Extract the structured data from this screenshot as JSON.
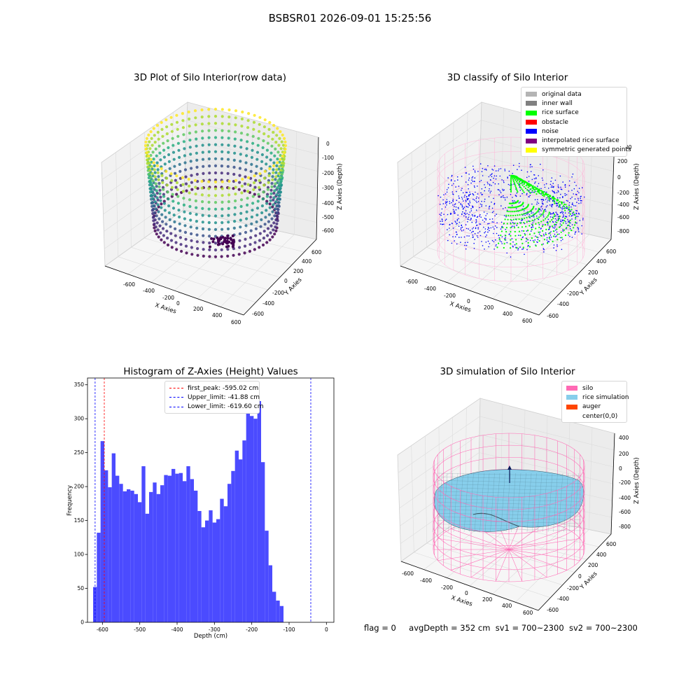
{
  "suptitle": "BSBSR01 2026-09-01 15:25:56",
  "panels": {
    "raw": {
      "title": "3D Plot of Silo Interior(row data)",
      "xlabel": "X Axies",
      "ylabel": "Y Axies",
      "zlabel": "Z Axies (Depth)",
      "xticks": [
        "-600",
        "-400",
        "-200",
        "0",
        "200",
        "400",
        "600"
      ],
      "yticks": [
        "-600",
        "-400",
        "-200",
        "0",
        "200",
        "400",
        "600"
      ],
      "zticks": [
        "0",
        "-100",
        "-200",
        "-300",
        "-400",
        "-500",
        "-600"
      ]
    },
    "classify": {
      "title": "3D classify of Silo Interior",
      "xlabel": "X Axies",
      "ylabel": "Y Axies",
      "zlabel": "Z Axies (Depth)",
      "xticks": [
        "-600",
        "-400",
        "-200",
        "0",
        "200",
        "400",
        "600"
      ],
      "yticks": [
        "-600",
        "-400",
        "-200",
        "0",
        "200",
        "400",
        "600"
      ],
      "zticks": [
        "200",
        "0",
        "-200",
        "-400",
        "-600",
        "-800"
      ],
      "ztop": "00",
      "legend": [
        {
          "label": "original data",
          "color": "#b4b4b4"
        },
        {
          "label": "inner wall",
          "color": "#808080"
        },
        {
          "label": "rice surface",
          "color": "#00ff00"
        },
        {
          "label": "obstacle",
          "color": "#ff0000"
        },
        {
          "label": "noise",
          "color": "#0000ff"
        },
        {
          "label": "interpolated rice surface",
          "color": "#800080"
        },
        {
          "label": "symmetric generated points",
          "color": "#ffff00"
        }
      ]
    },
    "histogram": {
      "title": "Histogram of Z-Axies (Height) Values",
      "xlabel": "Depth (cm)",
      "ylabel": "Frequency",
      "legend": [
        {
          "label": "first_peak: -595.02 cm",
          "color": "#ff0000"
        },
        {
          "label": "Upper_limit: -41.88 cm",
          "color": "#0000ff"
        },
        {
          "label": "Lower_limit: -619.60 cm",
          "color": "#0000ff"
        }
      ]
    },
    "simulation": {
      "title": "3D simulation of Silo Interior",
      "xlabel": "X Axies",
      "ylabel": "Y Axies",
      "zlabel": "Z Axies (Depth)",
      "xticks": [
        "-600",
        "-400",
        "-200",
        "0",
        "200",
        "400",
        "600"
      ],
      "yticks": [
        "-600",
        "-400",
        "-200",
        "0",
        "200",
        "400",
        "600"
      ],
      "zticks": [
        "400",
        "200",
        "0",
        "-200",
        "-400",
        "-600",
        "-800"
      ],
      "legend": [
        {
          "label": "silo",
          "color": "#ff69b4"
        },
        {
          "label": "rice simulation",
          "color": "#87ceeb"
        },
        {
          "label": "auger",
          "color": "#ff4500"
        },
        {
          "label": "center(0,0)",
          "color": ""
        }
      ]
    }
  },
  "status": {
    "flag": "flag = 0",
    "avg_depth": "avgDepth = 352 cm",
    "sv1": "sv1 = 700~2300",
    "sv2": "sv2 = 700~2300"
  },
  "chart_data": [
    {
      "type": "histogram",
      "bin_start": -625,
      "bin_width": 10,
      "values": [
        52,
        132,
        267,
        224,
        199,
        249,
        216,
        204,
        193,
        196,
        194,
        189,
        177,
        230,
        160,
        192,
        206,
        189,
        202,
        217,
        216,
        226,
        219,
        220,
        208,
        230,
        211,
        194,
        164,
        140,
        150,
        165,
        147,
        152,
        182,
        171,
        204,
        223,
        253,
        240,
        268,
        342,
        304,
        300,
        326,
        236,
        135,
        84,
        45,
        32,
        24
      ],
      "xlim": [
        -640,
        20
      ],
      "ylim": [
        0,
        360
      ],
      "xticks": [
        -600,
        -500,
        -400,
        -300,
        -200,
        -100,
        0
      ],
      "yticks": [
        0,
        50,
        100,
        150,
        200,
        250,
        300,
        350
      ],
      "vlines": [
        {
          "x": -595.02,
          "color": "#ff0000"
        },
        {
          "x": -41.88,
          "color": "#0000ff"
        },
        {
          "x": -619.6,
          "color": "#0000ff"
        }
      ],
      "bar_color": "#4b4bff"
    }
  ]
}
